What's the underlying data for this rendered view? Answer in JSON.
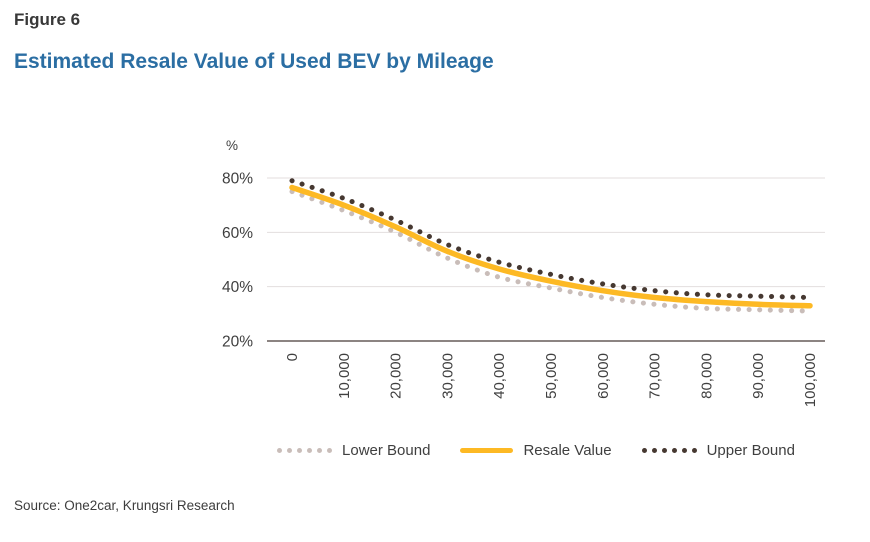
{
  "figure_label": "Figure 6",
  "title": "Estimated Resale Value of Used BEV by Mileage",
  "source": "Source: One2car, Krungsri Research",
  "chart_data": {
    "type": "line",
    "title": "Estimated Resale Value of Used BEV by Mileage",
    "unit_label": "%",
    "x": [
      0,
      10000,
      20000,
      30000,
      40000,
      50000,
      60000,
      70000,
      80000,
      90000,
      100000
    ],
    "x_tick_labels": [
      "0",
      "10,000",
      "20,000",
      "30,000",
      "40,000",
      "50,000",
      "60,000",
      "70,000",
      "80,000",
      "90,000",
      "100,000"
    ],
    "y_ticks": [
      20,
      40,
      60,
      80
    ],
    "y_tick_labels": [
      "20%",
      "40%",
      "60%",
      "80%"
    ],
    "ylim": [
      20,
      85
    ],
    "grid": "horizontal",
    "legend_position": "bottom",
    "series": [
      {
        "name": "Lower Bound",
        "style": "dotted",
        "color": "#C9BDB9",
        "values": [
          75,
          68,
          60,
          50.5,
          43.5,
          39.5,
          36,
          33.5,
          32,
          31.5,
          31
        ]
      },
      {
        "name": "Resale Value",
        "style": "solid",
        "color": "#FDB924",
        "values": [
          76.5,
          70,
          62,
          53,
          46.5,
          42,
          38.5,
          36,
          34.5,
          33.5,
          33
        ]
      },
      {
        "name": "Upper Bound",
        "style": "dotted",
        "color": "#463831",
        "values": [
          79,
          72.5,
          64.5,
          55.5,
          49,
          44.5,
          41,
          38.5,
          37,
          36.5,
          36
        ]
      }
    ]
  },
  "colors": {
    "title_blue": "#2B6EA3",
    "figure_label_dark": "#383838",
    "gridline": "#E3DEDE",
    "axis_line": "#665C58",
    "tick_text": "#3F3F3F",
    "background": "#FFFFFF"
  }
}
